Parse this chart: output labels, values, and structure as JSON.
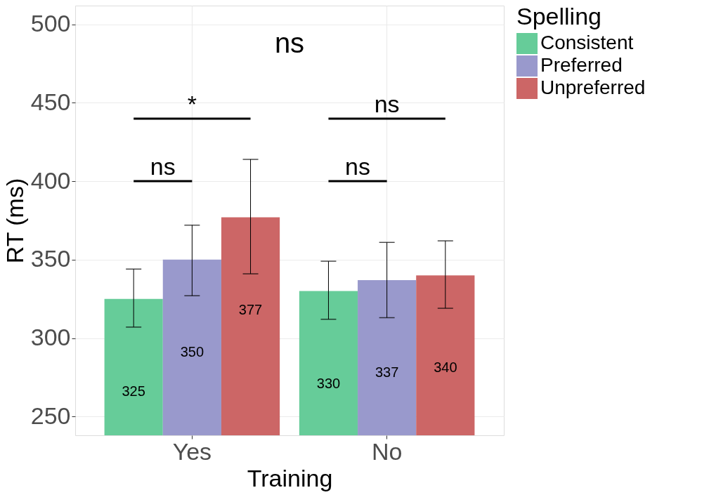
{
  "chart_data": {
    "type": "bar",
    "xlabel": "Training",
    "ylabel": "RT (ms)",
    "legend_title": "Spelling",
    "categories": [
      "Yes",
      "No"
    ],
    "series": [
      {
        "name": "Consistent",
        "color": "#66cc99",
        "values": [
          325,
          330
        ],
        "errors": [
          [
            307,
            344
          ],
          [
            312,
            349
          ]
        ]
      },
      {
        "name": "Preferred",
        "color": "#9999cc",
        "values": [
          350,
          337
        ],
        "errors": [
          [
            327,
            372
          ],
          [
            313,
            361
          ]
        ]
      },
      {
        "name": "Unpreferred",
        "color": "#cc6666",
        "values": [
          377,
          340
        ],
        "errors": [
          [
            341,
            414
          ],
          [
            319,
            362
          ]
        ]
      }
    ],
    "data_labels": true,
    "ylim": [
      238,
      512
    ],
    "yticks": [
      250,
      300,
      350,
      400,
      450,
      500
    ],
    "grid": true,
    "legend": "right",
    "annotations": [
      "ns",
      "*",
      "ns",
      "ns",
      "ns"
    ]
  }
}
